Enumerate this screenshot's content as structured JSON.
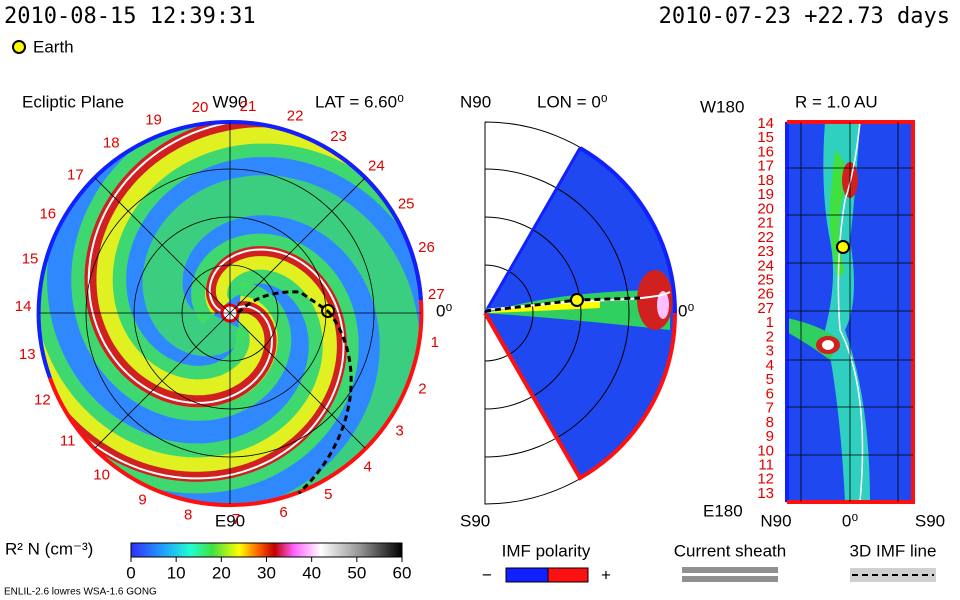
{
  "header": {
    "datetime": "2010-08-15 12:39:31",
    "reference": "2010-07-23 +22.73 days",
    "earth_legend": "Earth"
  },
  "ecliptic": {
    "title": "Ecliptic Plane",
    "top_label": "W90",
    "bottom_label": "E90",
    "lat": "LAT = 6.60⁰",
    "right_label": "0⁰",
    "days": [
      1,
      2,
      3,
      4,
      5,
      6,
      7,
      8,
      9,
      10,
      11,
      12,
      13,
      14,
      15,
      16,
      17,
      18,
      19,
      20,
      21,
      22,
      23,
      24,
      25,
      26,
      27
    ]
  },
  "meridional": {
    "top_left": "N90",
    "lon": "LON = 0⁰",
    "bottom_left": "S90",
    "right_label": "0⁰"
  },
  "radial": {
    "top_left": "W180",
    "r_label": "R = 1.0 AU",
    "bottom_left": "E180",
    "x_left": "N90",
    "x_mid": "0⁰",
    "x_right": "S90",
    "days": [
      14,
      15,
      16,
      17,
      18,
      19,
      20,
      21,
      22,
      23,
      24,
      25,
      26,
      27,
      1,
      2,
      3,
      4,
      5,
      6,
      7,
      8,
      9,
      10,
      11,
      12,
      13
    ]
  },
  "colorbar": {
    "label": "R² N (cm⁻³)",
    "lim": [
      0,
      60
    ],
    "ticks": [
      0,
      10,
      20,
      30,
      40,
      50,
      60
    ]
  },
  "legends": {
    "imf_polarity": "IMF polarity",
    "minus": "−",
    "plus": "+",
    "current_sheath": "Current sheath",
    "imf_line": "3D IMF line"
  },
  "footer": "ENLIL-2.6 lowres WSA-1.6 GONG"
}
